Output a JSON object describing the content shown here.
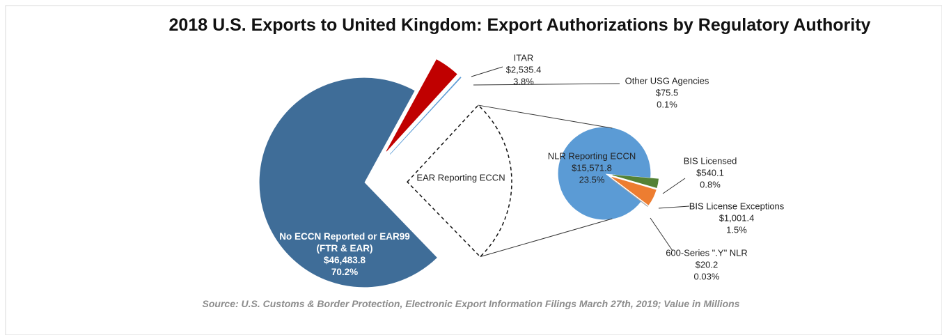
{
  "chart_data": {
    "type": "pie",
    "title": "2018 U.S. Exports to United Kingdom: Export Authorizations by Regulatory Authority",
    "note": "Source: U.S. Customs & Border Protection, Electronic Export Information Filings March 27th, 2019; Value in Millions",
    "categories": [
      "No ECCN Reported or EAR99 (FTR & EAR)",
      "ITAR",
      "Other USG Agencies"
    ],
    "values": [
      70.2,
      3.8,
      0.1
    ],
    "value_labels": [
      "70.2%",
      "3.8%",
      "0.1%"
    ],
    "amounts": [
      46483.8,
      2535.4,
      75.5
    ],
    "amount_labels": [
      "$46,483.8",
      "$2,535.4",
      "$75.5"
    ],
    "colors": [
      "#3f6d98",
      "#c00000",
      "#5b9bd5"
    ],
    "group_label": "EAR Reporting ECCN",
    "sub": {
      "categories": [
        "NLR Reporting ECCN",
        "BIS Licensed",
        "BIS License Exceptions",
        "600-Series \".Y\" NLR"
      ],
      "values": [
        23.5,
        0.8,
        1.5,
        0.03
      ],
      "value_labels": [
        "23.5%",
        "0.8%",
        "1.5%",
        "0.03%"
      ],
      "amounts": [
        15571.8,
        540.1,
        1001.4,
        20.2
      ],
      "amount_labels": [
        "$15,571.8",
        "$540.1",
        "$1,001.4",
        "$20.2"
      ],
      "colors": [
        "#5b9bd5",
        "#548235",
        "#ed7d31",
        "#a5a5a5"
      ]
    }
  }
}
